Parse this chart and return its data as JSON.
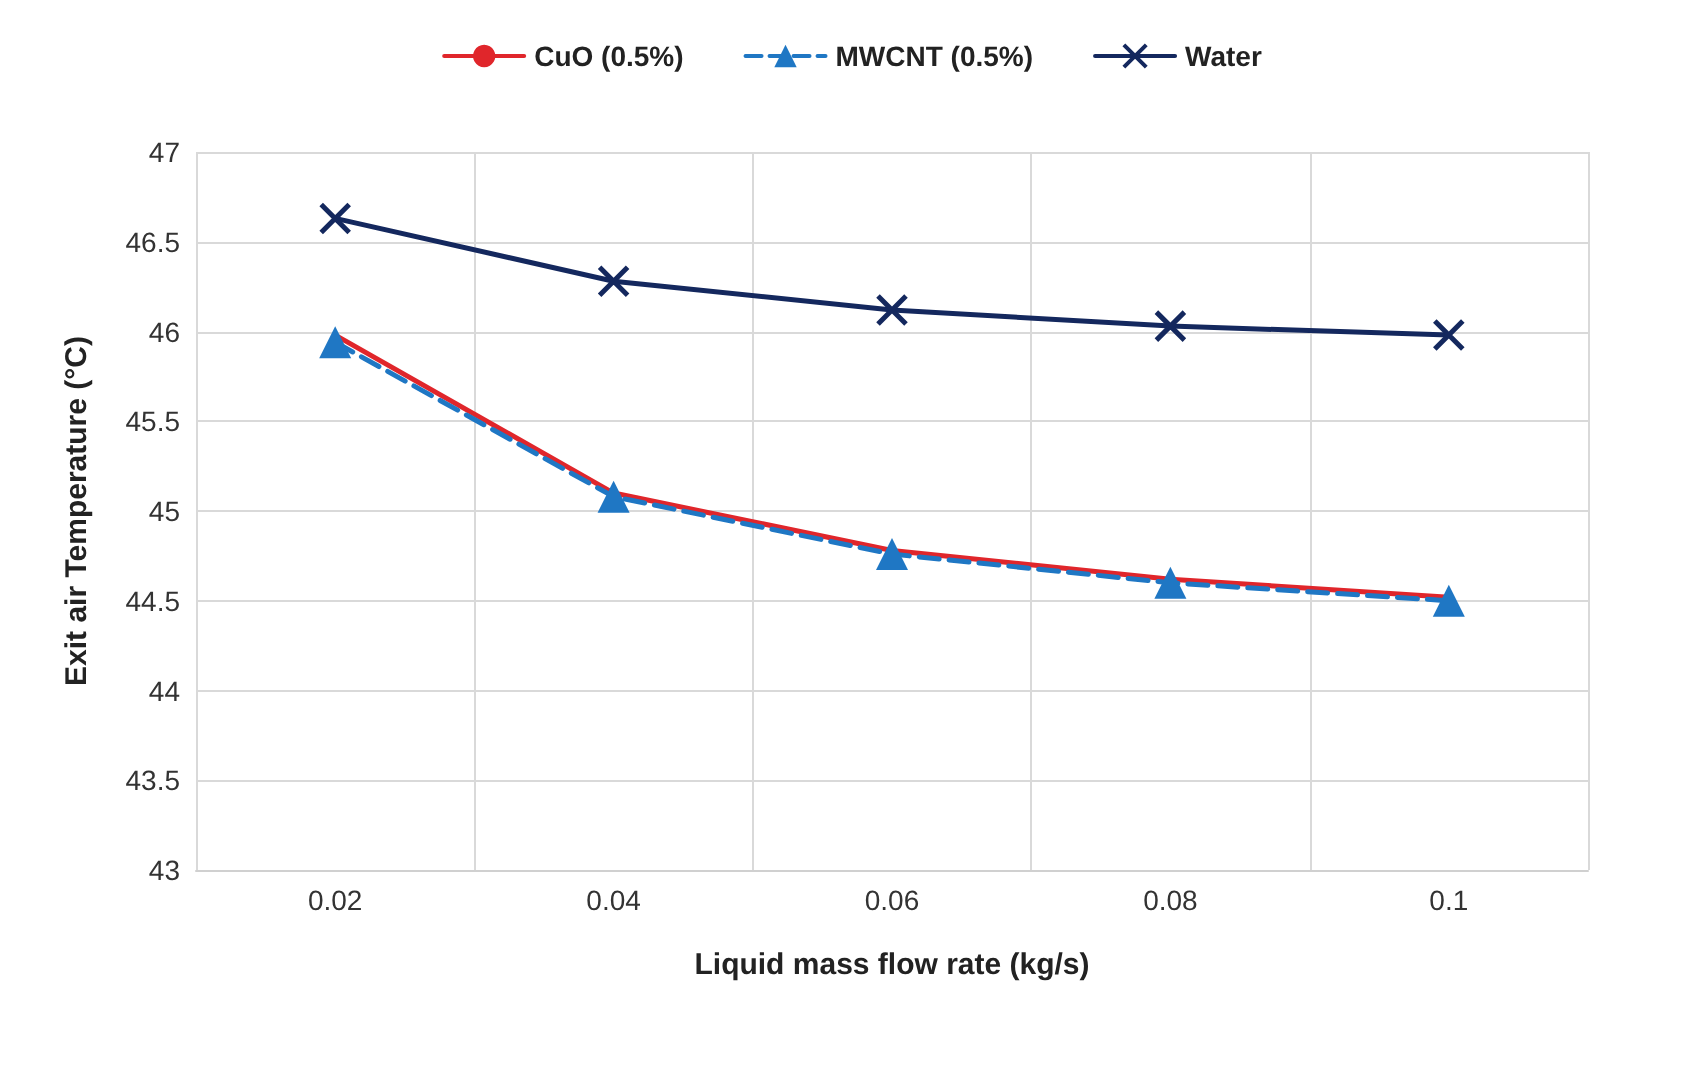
{
  "chart_data": {
    "type": "line",
    "xlabel": "Liquid mass flow rate (kg/s)",
    "ylabel": "Exit air Temperature (°C)",
    "categories": [
      "0.02",
      "0.04",
      "0.06",
      "0.08",
      "0.1"
    ],
    "series": [
      {
        "name": "CuO (0.5%)",
        "color": "#e0262b",
        "values": [
          45.98,
          45.1,
          44.78,
          44.62,
          44.52
        ],
        "marker": "none",
        "line_style": "solid"
      },
      {
        "name": "MWCNT (0.5%)",
        "color": "#1f77c4",
        "values": [
          45.94,
          45.08,
          44.76,
          44.6,
          44.5
        ],
        "marker": "triangle",
        "line_style": "dashed"
      },
      {
        "name": "Water",
        "color": "#14285e",
        "values": [
          46.63,
          46.28,
          46.12,
          46.03,
          45.98
        ],
        "marker": "cross",
        "line_style": "solid"
      }
    ],
    "ylim": [
      43,
      47
    ],
    "yticks": [
      43,
      43.5,
      44,
      44.5,
      45,
      45.5,
      46,
      46.5,
      47
    ],
    "grid": true,
    "legend": "top"
  }
}
